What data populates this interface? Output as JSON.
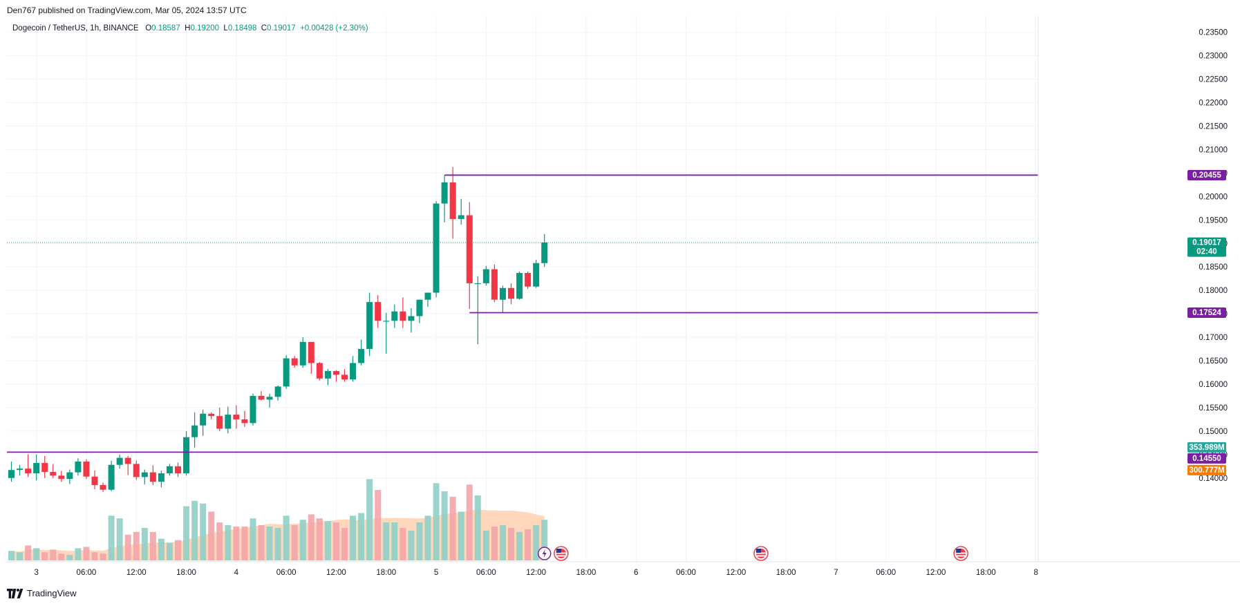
{
  "publish_info": "Den767 published on TradingView.com, Mar 05, 2024 13:57 UTC",
  "legend": {
    "symbol": "Dogecoin / TetherUS, 1h, BINANCE",
    "open_label": "O",
    "open": "0.18587",
    "high_label": "H",
    "high": "0.19200",
    "low_label": "L",
    "low": "0.18498",
    "close_label": "C",
    "close": "0.19017",
    "change": "+0.00428 (+2.30%)"
  },
  "branding": "TradingView",
  "colors": {
    "up": "#089981",
    "down": "#f23645",
    "volume_up": "#8fcfc7",
    "volume_down": "#f3a5a9",
    "level_line": "#7b1fa2",
    "volume_ma_fill": "#ffcba4",
    "volume_ma_line": "#f57c00"
  },
  "chart_data": {
    "type": "candlestick",
    "symbol": "Dogecoin / TetherUS",
    "timeframe": "1h",
    "exchange": "BINANCE",
    "ylim": [
      0.137,
      0.237
    ],
    "y_ticks": [
      "0.23500",
      "0.23000",
      "0.22500",
      "0.22000",
      "0.21500",
      "0.21000",
      "0.20500",
      "0.20000",
      "0.19500",
      "0.19000",
      "0.18500",
      "0.18000",
      "0.17500",
      "0.17000",
      "0.16500",
      "0.16000",
      "0.15500",
      "0.15000",
      "0.14500",
      "0.14000"
    ],
    "x_ticks": [
      {
        "i": 3,
        "label": "3"
      },
      {
        "i": 9,
        "label": "06:00"
      },
      {
        "i": 15,
        "label": "12:00"
      },
      {
        "i": 21,
        "label": "18:00"
      },
      {
        "i": 27,
        "label": "4"
      },
      {
        "i": 33,
        "label": "06:00"
      },
      {
        "i": 39,
        "label": "12:00"
      },
      {
        "i": 45,
        "label": "18:00"
      },
      {
        "i": 51,
        "label": "5"
      },
      {
        "i": 57,
        "label": "06:00"
      },
      {
        "i": 63,
        "label": "12:00"
      },
      {
        "i": 69,
        "label": "18:00"
      },
      {
        "i": 75,
        "label": "6"
      },
      {
        "i": 81,
        "label": "06:00"
      },
      {
        "i": 87,
        "label": "12:00"
      },
      {
        "i": 93,
        "label": "18:00"
      },
      {
        "i": 99,
        "label": "7"
      },
      {
        "i": 105,
        "label": "06:00"
      },
      {
        "i": 111,
        "label": "12:00"
      },
      {
        "i": 117,
        "label": "18:00"
      },
      {
        "i": 123,
        "label": "8"
      }
    ],
    "candles": [
      {
        "o": 0.14,
        "h": 0.1435,
        "l": 0.1392,
        "c": 0.1417
      },
      {
        "o": 0.1417,
        "h": 0.1428,
        "l": 0.1405,
        "c": 0.142
      },
      {
        "o": 0.142,
        "h": 0.145,
        "l": 0.1402,
        "c": 0.141
      },
      {
        "o": 0.141,
        "h": 0.145,
        "l": 0.1395,
        "c": 0.1432
      },
      {
        "o": 0.1432,
        "h": 0.1447,
        "l": 0.14,
        "c": 0.1413
      },
      {
        "o": 0.1413,
        "h": 0.143,
        "l": 0.14,
        "c": 0.1405
      },
      {
        "o": 0.1405,
        "h": 0.1415,
        "l": 0.1392,
        "c": 0.1398
      },
      {
        "o": 0.1398,
        "h": 0.1418,
        "l": 0.1387,
        "c": 0.1412
      },
      {
        "o": 0.1412,
        "h": 0.1442,
        "l": 0.1405,
        "c": 0.1435
      },
      {
        "o": 0.1435,
        "h": 0.144,
        "l": 0.1398,
        "c": 0.1403
      },
      {
        "o": 0.1403,
        "h": 0.1416,
        "l": 0.1376,
        "c": 0.1385
      },
      {
        "o": 0.1385,
        "h": 0.139,
        "l": 0.137,
        "c": 0.1375
      },
      {
        "o": 0.1375,
        "h": 0.1437,
        "l": 0.1372,
        "c": 0.1428
      },
      {
        "o": 0.1428,
        "h": 0.145,
        "l": 0.142,
        "c": 0.1443
      },
      {
        "o": 0.1443,
        "h": 0.1447,
        "l": 0.1406,
        "c": 0.143
      },
      {
        "o": 0.143,
        "h": 0.1437,
        "l": 0.1396,
        "c": 0.1402
      },
      {
        "o": 0.1402,
        "h": 0.1418,
        "l": 0.1386,
        "c": 0.1412
      },
      {
        "o": 0.1412,
        "h": 0.1427,
        "l": 0.1385,
        "c": 0.1392
      },
      {
        "o": 0.1392,
        "h": 0.1416,
        "l": 0.138,
        "c": 0.141
      },
      {
        "o": 0.141,
        "h": 0.143,
        "l": 0.1405,
        "c": 0.1425
      },
      {
        "o": 0.1425,
        "h": 0.1433,
        "l": 0.1402,
        "c": 0.141
      },
      {
        "o": 0.141,
        "h": 0.15,
        "l": 0.1405,
        "c": 0.1487
      },
      {
        "o": 0.1487,
        "h": 0.154,
        "l": 0.1465,
        "c": 0.1512
      },
      {
        "o": 0.1512,
        "h": 0.1546,
        "l": 0.149,
        "c": 0.1537
      },
      {
        "o": 0.1537,
        "h": 0.154,
        "l": 0.1525,
        "c": 0.1532
      },
      {
        "o": 0.1532,
        "h": 0.155,
        "l": 0.15,
        "c": 0.1505
      },
      {
        "o": 0.1505,
        "h": 0.1552,
        "l": 0.1495,
        "c": 0.1535
      },
      {
        "o": 0.1535,
        "h": 0.1555,
        "l": 0.1505,
        "c": 0.1525
      },
      {
        "o": 0.1525,
        "h": 0.1543,
        "l": 0.1509,
        "c": 0.1517
      },
      {
        "o": 0.1517,
        "h": 0.158,
        "l": 0.1512,
        "c": 0.1575
      },
      {
        "o": 0.1575,
        "h": 0.1585,
        "l": 0.1565,
        "c": 0.1567
      },
      {
        "o": 0.1567,
        "h": 0.158,
        "l": 0.155,
        "c": 0.1573
      },
      {
        "o": 0.1573,
        "h": 0.1597,
        "l": 0.1565,
        "c": 0.1595
      },
      {
        "o": 0.1595,
        "h": 0.1662,
        "l": 0.159,
        "c": 0.1655
      },
      {
        "o": 0.1655,
        "h": 0.166,
        "l": 0.1635,
        "c": 0.164
      },
      {
        "o": 0.164,
        "h": 0.17,
        "l": 0.1635,
        "c": 0.169
      },
      {
        "o": 0.169,
        "h": 0.169,
        "l": 0.1622,
        "c": 0.1645
      },
      {
        "o": 0.1645,
        "h": 0.1647,
        "l": 0.1608,
        "c": 0.1612
      },
      {
        "o": 0.1612,
        "h": 0.1632,
        "l": 0.1598,
        "c": 0.1628
      },
      {
        "o": 0.1628,
        "h": 0.163,
        "l": 0.1605,
        "c": 0.162
      },
      {
        "o": 0.162,
        "h": 0.1632,
        "l": 0.1605,
        "c": 0.161
      },
      {
        "o": 0.161,
        "h": 0.166,
        "l": 0.1605,
        "c": 0.1645
      },
      {
        "o": 0.1645,
        "h": 0.1695,
        "l": 0.164,
        "c": 0.1675
      },
      {
        "o": 0.1675,
        "h": 0.1795,
        "l": 0.166,
        "c": 0.1775
      },
      {
        "o": 0.1775,
        "h": 0.179,
        "l": 0.172,
        "c": 0.1735
      },
      {
        "o": 0.1735,
        "h": 0.1752,
        "l": 0.1665,
        "c": 0.1735
      },
      {
        "o": 0.1735,
        "h": 0.177,
        "l": 0.172,
        "c": 0.1755
      },
      {
        "o": 0.1755,
        "h": 0.1785,
        "l": 0.172,
        "c": 0.1735
      },
      {
        "o": 0.1735,
        "h": 0.1762,
        "l": 0.171,
        "c": 0.1745
      },
      {
        "o": 0.1745,
        "h": 0.178,
        "l": 0.173,
        "c": 0.178
      },
      {
        "o": 0.178,
        "h": 0.1795,
        "l": 0.1765,
        "c": 0.1795
      },
      {
        "o": 0.1795,
        "h": 0.199,
        "l": 0.1785,
        "c": 0.1985
      },
      {
        "o": 0.1985,
        "h": 0.2045,
        "l": 0.1945,
        "c": 0.203
      },
      {
        "o": 0.203,
        "h": 0.2063,
        "l": 0.191,
        "c": 0.1952
      },
      {
        "o": 0.1952,
        "h": 0.1995,
        "l": 0.194,
        "c": 0.196
      },
      {
        "o": 0.196,
        "h": 0.1988,
        "l": 0.176,
        "c": 0.1815
      },
      {
        "o": 0.1815,
        "h": 0.183,
        "l": 0.1685,
        "c": 0.1815
      },
      {
        "o": 0.1815,
        "h": 0.1852,
        "l": 0.181,
        "c": 0.1845
      },
      {
        "o": 0.1845,
        "h": 0.1855,
        "l": 0.1775,
        "c": 0.178
      },
      {
        "o": 0.178,
        "h": 0.181,
        "l": 0.1752,
        "c": 0.1805
      },
      {
        "o": 0.1805,
        "h": 0.1815,
        "l": 0.177,
        "c": 0.1782
      },
      {
        "o": 0.1782,
        "h": 0.184,
        "l": 0.178,
        "c": 0.1837
      },
      {
        "o": 0.1837,
        "h": 0.184,
        "l": 0.1803,
        "c": 0.1808
      },
      {
        "o": 0.1808,
        "h": 0.1865,
        "l": 0.1805,
        "c": 0.1858
      },
      {
        "o": 0.1858,
        "h": 0.192,
        "l": 0.185,
        "c": 0.1902
      }
    ],
    "volume_relative": [
      0.14,
      0.12,
      0.22,
      0.18,
      0.12,
      0.16,
      0.1,
      0.08,
      0.18,
      0.2,
      0.12,
      0.1,
      0.66,
      0.62,
      0.38,
      0.42,
      0.48,
      0.42,
      0.32,
      0.26,
      0.3,
      0.8,
      0.88,
      0.84,
      0.72,
      0.56,
      0.52,
      0.5,
      0.5,
      0.62,
      0.52,
      0.5,
      0.48,
      0.66,
      0.52,
      0.6,
      0.68,
      0.62,
      0.58,
      0.56,
      0.48,
      0.66,
      0.7,
      1.2,
      1.04,
      0.56,
      0.56,
      0.48,
      0.44,
      0.56,
      0.66,
      1.14,
      1.02,
      0.94,
      0.72,
      1.12,
      0.96,
      0.44,
      0.5,
      0.52,
      0.48,
      0.42,
      0.46,
      0.52,
      0.6
    ],
    "levels": [
      {
        "label": "0.20455",
        "value": 0.20455,
        "from_index": 52
      },
      {
        "label": "0.17524",
        "value": 0.17524,
        "from_index": 55
      },
      {
        "label": "0.14550",
        "value": 0.1455,
        "from_index": 0
      }
    ],
    "last_price": {
      "label": "0.19017",
      "value": 0.19017,
      "countdown": "02:40"
    },
    "volume_labels": [
      {
        "label": "353.989M",
        "color": "#26a69a"
      },
      {
        "label": "300.777M",
        "color": "#f57c00"
      }
    ],
    "event_markers": [
      {
        "i": 64,
        "kind": "lightning"
      },
      {
        "i": 66,
        "kind": "us-flag"
      },
      {
        "i": 90,
        "kind": "us-flag"
      },
      {
        "i": 114,
        "kind": "us-flag"
      }
    ]
  }
}
